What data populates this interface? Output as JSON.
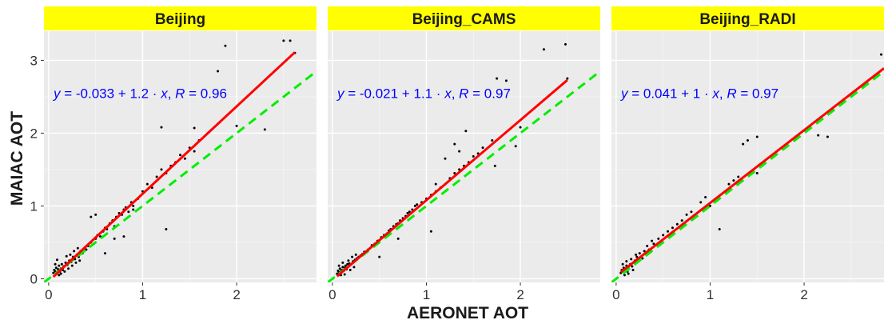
{
  "colors": {
    "panel_bg": "#ebebeb",
    "grid_major": "#ffffff",
    "strip_bg": "#ffff00",
    "points": "#000000",
    "fit_line": "#ff0000",
    "one_to_one_line": "#00ee00",
    "equation": "#0000ff"
  },
  "chart_data": {
    "type": "scatter",
    "xlabel": "AERONET AOT",
    "ylabel": "MAIAC AOT",
    "xlim": [
      -0.05,
      2.85
    ],
    "ylim": [
      -0.05,
      3.4
    ],
    "x_ticks": [
      0,
      1,
      2
    ],
    "y_ticks": [
      0,
      1,
      2,
      3
    ],
    "grid": true,
    "reference_line": {
      "style": "dashed",
      "intercept": 0,
      "slope": 1
    },
    "panels": [
      {
        "title": "Beijing",
        "equation": {
          "y": "y",
          "eq": " = -0.033 + 1.2 · ",
          "x": "x",
          "sep": ",  ",
          "r": "R",
          "rval": " = 0.96"
        },
        "fit": {
          "intercept": -0.033,
          "slope": 1.2,
          "x_range": [
            0.05,
            2.62
          ]
        },
        "points": [
          [
            0.05,
            0.08
          ],
          [
            0.06,
            0.12
          ],
          [
            0.07,
            0.1
          ],
          [
            0.08,
            0.15
          ],
          [
            0.09,
            0.09
          ],
          [
            0.1,
            0.13
          ],
          [
            0.11,
            0.18
          ],
          [
            0.12,
            0.1
          ],
          [
            0.13,
            0.14
          ],
          [
            0.14,
            0.2
          ],
          [
            0.15,
            0.12
          ],
          [
            0.16,
            0.17
          ],
          [
            0.18,
            0.22
          ],
          [
            0.2,
            0.19
          ],
          [
            0.22,
            0.25
          ],
          [
            0.24,
            0.23
          ],
          [
            0.26,
            0.3
          ],
          [
            0.28,
            0.27
          ],
          [
            0.3,
            0.33
          ],
          [
            0.32,
            0.3
          ],
          [
            0.34,
            0.38
          ],
          [
            0.36,
            0.35
          ],
          [
            0.38,
            0.42
          ],
          [
            0.4,
            0.4
          ],
          [
            0.42,
            0.45
          ],
          [
            0.45,
            0.5
          ],
          [
            0.48,
            0.48
          ],
          [
            0.5,
            0.55
          ],
          [
            0.52,
            0.6
          ],
          [
            0.55,
            0.58
          ],
          [
            0.58,
            0.65
          ],
          [
            0.6,
            0.7
          ],
          [
            0.62,
            0.68
          ],
          [
            0.65,
            0.76
          ],
          [
            0.68,
            0.8
          ],
          [
            0.7,
            0.72
          ],
          [
            0.72,
            0.85
          ],
          [
            0.75,
            0.9
          ],
          [
            0.78,
            0.88
          ],
          [
            0.8,
            0.95
          ],
          [
            0.82,
            0.98
          ],
          [
            0.85,
            0.92
          ],
          [
            0.88,
            1.05
          ],
          [
            0.9,
            1.0
          ],
          [
            0.95,
            1.1
          ],
          [
            1.0,
            1.2
          ],
          [
            1.05,
            1.3
          ],
          [
            1.1,
            1.25
          ],
          [
            1.15,
            1.4
          ],
          [
            1.2,
            1.5
          ],
          [
            1.25,
            1.45
          ],
          [
            1.3,
            1.55
          ],
          [
            1.35,
            1.6
          ],
          [
            1.4,
            1.7
          ],
          [
            1.45,
            1.65
          ],
          [
            1.5,
            1.8
          ],
          [
            1.55,
            1.75
          ],
          [
            1.6,
            1.9
          ],
          [
            1.2,
            2.08
          ],
          [
            1.55,
            2.07
          ],
          [
            1.25,
            0.68
          ],
          [
            0.45,
            0.85
          ],
          [
            0.5,
            0.88
          ],
          [
            0.6,
            0.35
          ],
          [
            0.7,
            0.55
          ],
          [
            0.8,
            0.58
          ],
          [
            0.9,
            0.95
          ],
          [
            1.8,
            2.85
          ],
          [
            1.88,
            3.2
          ],
          [
            2.0,
            2.1
          ],
          [
            2.3,
            2.05
          ],
          [
            2.5,
            3.27
          ],
          [
            2.57,
            3.27
          ],
          [
            2.62,
            3.1
          ],
          [
            0.07,
            0.2
          ],
          [
            0.09,
            0.26
          ],
          [
            0.11,
            0.05
          ],
          [
            0.13,
            0.07
          ],
          [
            0.17,
            0.1
          ],
          [
            0.19,
            0.31
          ],
          [
            0.21,
            0.14
          ],
          [
            0.23,
            0.33
          ],
          [
            0.25,
            0.18
          ],
          [
            0.27,
            0.38
          ],
          [
            0.29,
            0.22
          ],
          [
            0.31,
            0.42
          ],
          [
            0.33,
            0.25
          ]
        ]
      },
      {
        "title": "Beijing_CAMS",
        "equation": {
          "y": "y",
          "eq": " = -0.021 + 1.1 · ",
          "x": "x",
          "sep": ",  ",
          "r": "R",
          "rval": " = 0.97"
        },
        "fit": {
          "intercept": -0.021,
          "slope": 1.1,
          "x_range": [
            0.05,
            2.5
          ]
        },
        "points": [
          [
            0.05,
            0.07
          ],
          [
            0.06,
            0.11
          ],
          [
            0.07,
            0.09
          ],
          [
            0.08,
            0.14
          ],
          [
            0.09,
            0.1
          ],
          [
            0.1,
            0.12
          ],
          [
            0.11,
            0.16
          ],
          [
            0.12,
            0.11
          ],
          [
            0.13,
            0.15
          ],
          [
            0.14,
            0.18
          ],
          [
            0.15,
            0.13
          ],
          [
            0.16,
            0.2
          ],
          [
            0.18,
            0.21
          ],
          [
            0.2,
            0.2
          ],
          [
            0.22,
            0.24
          ],
          [
            0.24,
            0.26
          ],
          [
            0.26,
            0.28
          ],
          [
            0.28,
            0.3
          ],
          [
            0.3,
            0.32
          ],
          [
            0.32,
            0.34
          ],
          [
            0.34,
            0.37
          ],
          [
            0.36,
            0.36
          ],
          [
            0.38,
            0.4
          ],
          [
            0.4,
            0.42
          ],
          [
            0.42,
            0.46
          ],
          [
            0.45,
            0.48
          ],
          [
            0.48,
            0.52
          ],
          [
            0.5,
            0.53
          ],
          [
            0.52,
            0.57
          ],
          [
            0.55,
            0.6
          ],
          [
            0.58,
            0.62
          ],
          [
            0.6,
            0.66
          ],
          [
            0.62,
            0.68
          ],
          [
            0.65,
            0.72
          ],
          [
            0.68,
            0.75
          ],
          [
            0.7,
            0.76
          ],
          [
            0.72,
            0.8
          ],
          [
            0.75,
            0.83
          ],
          [
            0.78,
            0.86
          ],
          [
            0.8,
            0.9
          ],
          [
            0.82,
            0.92
          ],
          [
            0.85,
            0.95
          ],
          [
            0.88,
            1.0
          ],
          [
            0.9,
            1.02
          ],
          [
            0.95,
            1.05
          ],
          [
            1.0,
            1.1
          ],
          [
            1.05,
            1.15
          ],
          [
            1.1,
            1.2
          ],
          [
            1.15,
            1.25
          ],
          [
            1.2,
            1.3
          ],
          [
            1.25,
            1.38
          ],
          [
            1.3,
            1.45
          ],
          [
            1.35,
            1.5
          ],
          [
            1.4,
            1.55
          ],
          [
            1.45,
            1.6
          ],
          [
            1.5,
            1.68
          ],
          [
            1.55,
            1.72
          ],
          [
            1.6,
            1.8
          ],
          [
            1.3,
            1.85
          ],
          [
            1.35,
            1.75
          ],
          [
            1.42,
            2.03
          ],
          [
            1.05,
            0.65
          ],
          [
            1.1,
            1.3
          ],
          [
            1.2,
            1.65
          ],
          [
            0.5,
            0.3
          ],
          [
            0.7,
            0.55
          ],
          [
            1.73,
            1.55
          ],
          [
            1.7,
            1.9
          ],
          [
            1.95,
            1.82
          ],
          [
            2.0,
            2.08
          ],
          [
            1.75,
            2.75
          ],
          [
            1.85,
            2.72
          ],
          [
            2.25,
            3.15
          ],
          [
            2.48,
            3.22
          ],
          [
            2.5,
            2.75
          ],
          [
            0.07,
            0.18
          ],
          [
            0.09,
            0.05
          ],
          [
            0.11,
            0.22
          ],
          [
            0.13,
            0.06
          ],
          [
            0.17,
            0.25
          ],
          [
            0.19,
            0.12
          ],
          [
            0.21,
            0.3
          ],
          [
            0.23,
            0.16
          ],
          [
            0.25,
            0.33
          ]
        ]
      },
      {
        "title": "Beijing_RADI",
        "equation": {
          "y": "y",
          "eq": " = 0.041 + 1 · ",
          "x": "x",
          "sep": ",  ",
          "r": "R",
          "rval": " = 0.97"
        },
        "fit": {
          "intercept": 0.041,
          "slope": 1.0,
          "x_range": [
            0.05,
            2.85
          ]
        },
        "points": [
          [
            0.05,
            0.08
          ],
          [
            0.06,
            0.12
          ],
          [
            0.07,
            0.1
          ],
          [
            0.08,
            0.15
          ],
          [
            0.09,
            0.11
          ],
          [
            0.1,
            0.14
          ],
          [
            0.11,
            0.18
          ],
          [
            0.12,
            0.1
          ],
          [
            0.13,
            0.16
          ],
          [
            0.15,
            0.2
          ],
          [
            0.17,
            0.17
          ],
          [
            0.2,
            0.25
          ],
          [
            0.22,
            0.3
          ],
          [
            0.25,
            0.35
          ],
          [
            0.28,
            0.28
          ],
          [
            0.3,
            0.38
          ],
          [
            0.33,
            0.45
          ],
          [
            0.35,
            0.4
          ],
          [
            0.38,
            0.52
          ],
          [
            0.4,
            0.48
          ],
          [
            0.45,
            0.55
          ],
          [
            0.5,
            0.6
          ],
          [
            0.55,
            0.65
          ],
          [
            0.6,
            0.7
          ],
          [
            0.65,
            0.75
          ],
          [
            0.7,
            0.8
          ],
          [
            0.75,
            0.88
          ],
          [
            0.8,
            0.92
          ],
          [
            0.9,
            1.05
          ],
          [
            0.95,
            1.12
          ],
          [
            1.0,
            1.0
          ],
          [
            1.1,
            0.68
          ],
          [
            1.2,
            1.3
          ],
          [
            1.25,
            1.35
          ],
          [
            1.3,
            1.4
          ],
          [
            1.35,
            1.85
          ],
          [
            1.4,
            1.9
          ],
          [
            1.5,
            1.95
          ],
          [
            1.5,
            1.45
          ],
          [
            1.55,
            1.55
          ],
          [
            2.15,
            1.97
          ],
          [
            2.25,
            1.95
          ],
          [
            2.82,
            3.08
          ],
          [
            0.07,
            0.2
          ],
          [
            0.09,
            0.05
          ],
          [
            0.11,
            0.24
          ],
          [
            0.13,
            0.07
          ],
          [
            0.16,
            0.27
          ],
          [
            0.18,
            0.12
          ],
          [
            0.21,
            0.33
          ]
        ]
      }
    ]
  }
}
